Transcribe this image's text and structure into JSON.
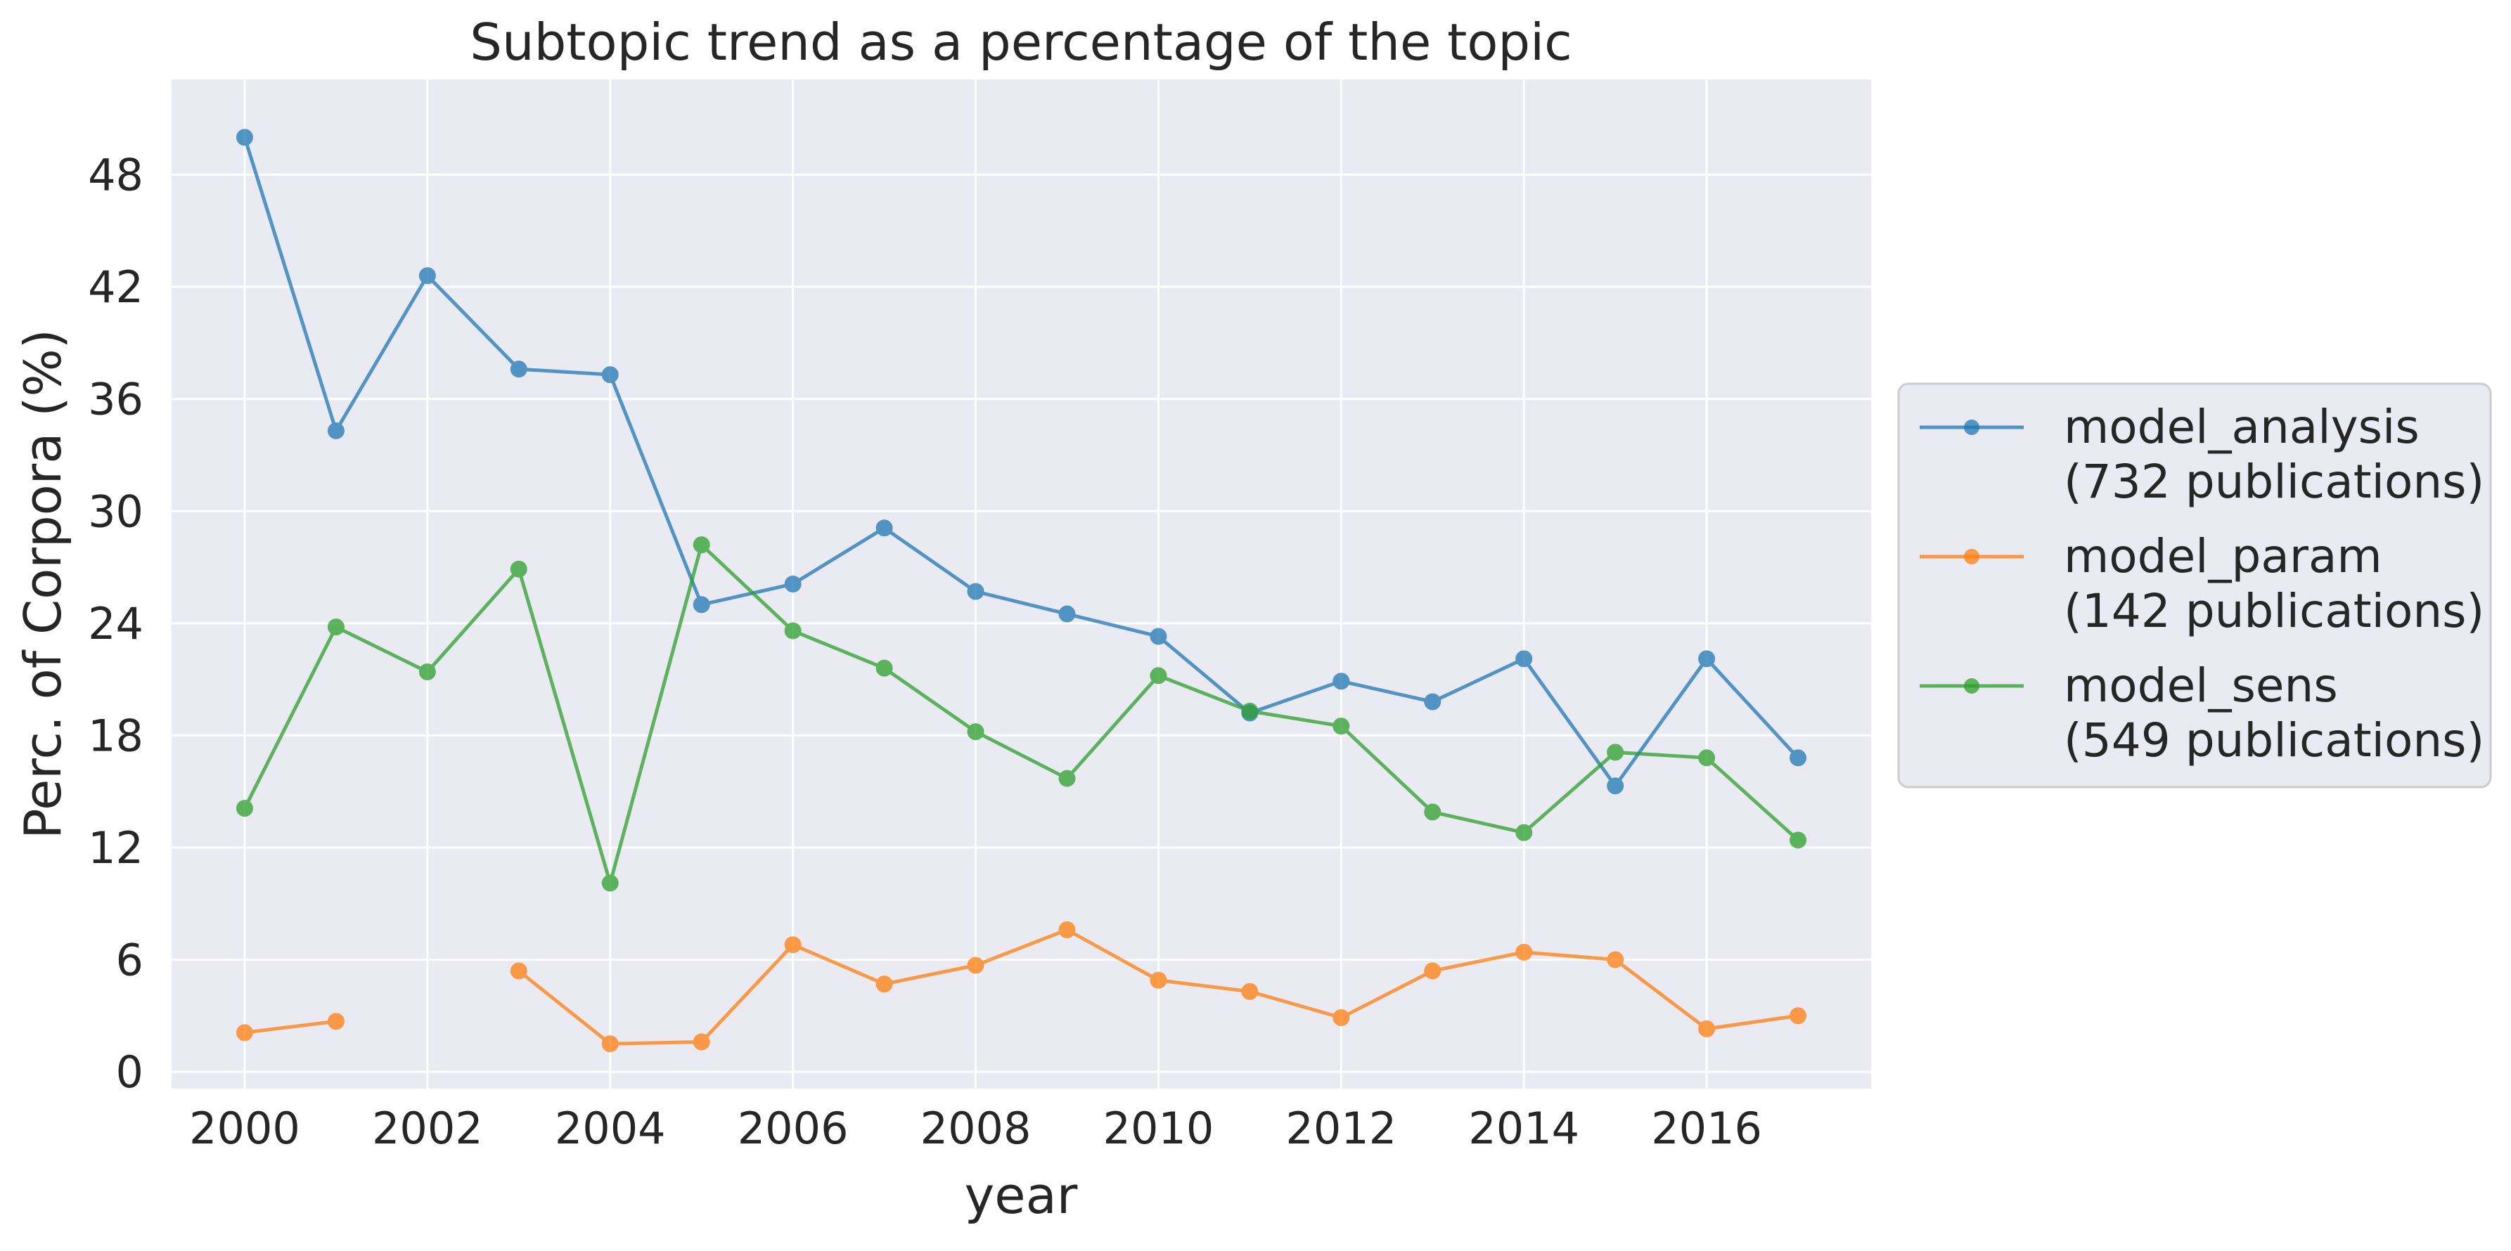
{
  "chart_data": {
    "type": "line",
    "title": "Subtopic trend as a percentage of the topic",
    "xlabel": "year",
    "ylabel": "Perc. of Corpora (%)",
    "xlim": [
      1999.2,
      2017.8
    ],
    "ylim": [
      -0.9,
      53.1
    ],
    "x_ticks": [
      2000,
      2002,
      2004,
      2006,
      2008,
      2010,
      2012,
      2014,
      2016
    ],
    "y_ticks": [
      0,
      6,
      12,
      18,
      24,
      30,
      36,
      42,
      48
    ],
    "grid": true,
    "legend_position": "outside-right",
    "series": [
      {
        "name": "model_analysis",
        "name_line2": "(732 publications)",
        "color": "#1f77b4",
        "x": [
          2000,
          2001,
          2002,
          2003,
          2004,
          2005,
          2006,
          2007,
          2008,
          2009,
          2010,
          2011,
          2012,
          2013,
          2014,
          2015,
          2016,
          2017
        ],
        "y": [
          50.0,
          34.3,
          42.6,
          37.6,
          37.3,
          25.0,
          26.1,
          29.1,
          25.7,
          24.5,
          23.3,
          19.2,
          20.9,
          19.8,
          22.1,
          15.3,
          22.1,
          16.8
        ]
      },
      {
        "name": "model_param",
        "name_line2": "(142 publications)",
        "color": "#ff7f0e",
        "x": [
          2000,
          2001,
          2002,
          2003,
          2004,
          2005,
          2006,
          2007,
          2008,
          2009,
          2010,
          2011,
          2012,
          2013,
          2014,
          2015,
          2016,
          2017
        ],
        "y": [
          2.1,
          2.7,
          null,
          5.4,
          1.5,
          1.6,
          6.8,
          4.7,
          5.7,
          7.6,
          4.9,
          4.3,
          2.9,
          5.4,
          6.4,
          6.0,
          2.3,
          3.0
        ]
      },
      {
        "name": "model_sens",
        "name_line2": "(549 publications)",
        "color": "#2ca02c",
        "x": [
          2000,
          2001,
          2002,
          2003,
          2004,
          2005,
          2006,
          2007,
          2008,
          2009,
          2010,
          2011,
          2012,
          2013,
          2014,
          2015,
          2016,
          2017
        ],
        "y": [
          14.1,
          23.8,
          21.4,
          26.9,
          10.1,
          28.2,
          23.6,
          21.6,
          18.2,
          15.7,
          21.2,
          19.3,
          18.5,
          13.9,
          12.8,
          17.1,
          16.8,
          12.4
        ]
      }
    ]
  }
}
